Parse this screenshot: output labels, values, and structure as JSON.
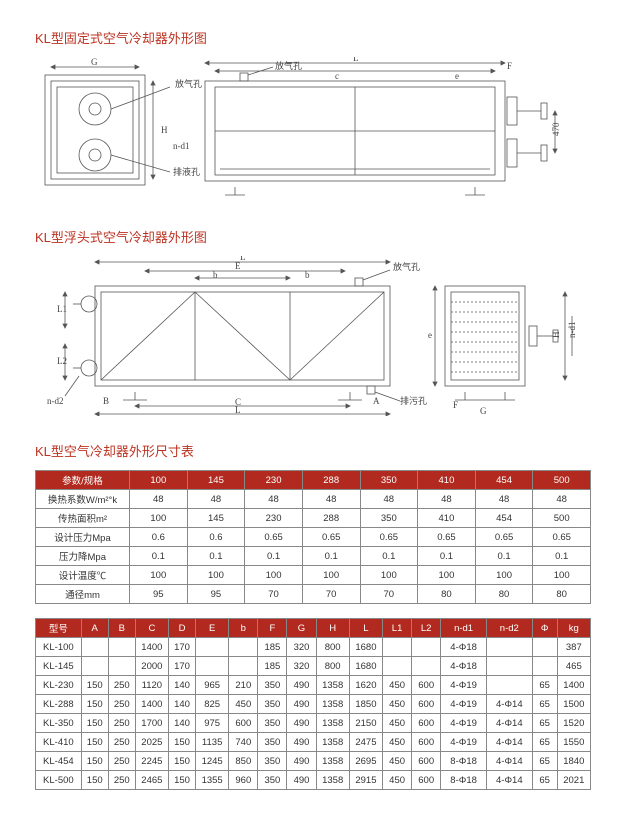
{
  "headings": {
    "h1": "KL型固定式空气冷却器外形图",
    "h2": "KL型浮头式空气冷却器外形图",
    "h3": "KL型空气冷却器外形尺寸表"
  },
  "diagram_labels": {
    "vent": "放气孔",
    "drain": "排液孔",
    "drain2": "排污孔",
    "nd1": "n-d1",
    "nd2": "n-d2",
    "G": "G",
    "H": "H",
    "L": "L",
    "c": "c",
    "e": "e",
    "f": "f",
    "F": "F",
    "A": "A",
    "B": "B",
    "C": "C",
    "E": "E",
    "b": "b",
    "L1": "L1",
    "L2": "L2",
    "n_d1": "n-d1",
    "dim470": "470"
  },
  "table1": {
    "head": [
      "参数/规格",
      "100",
      "145",
      "230",
      "288",
      "350",
      "410",
      "454",
      "500"
    ],
    "rows": [
      [
        "换热系数W/m²°k",
        "48",
        "48",
        "48",
        "48",
        "48",
        "48",
        "48",
        "48"
      ],
      [
        "传热面积m²",
        "100",
        "145",
        "230",
        "288",
        "350",
        "410",
        "454",
        "500"
      ],
      [
        "设计压力Mpa",
        "0.6",
        "0.6",
        "0.65",
        "0.65",
        "0.65",
        "0.65",
        "0.65",
        "0.65"
      ],
      [
        "压力降Mpa",
        "0.1",
        "0.1",
        "0.1",
        "0.1",
        "0.1",
        "0.1",
        "0.1",
        "0.1"
      ],
      [
        "设计温度℃",
        "100",
        "100",
        "100",
        "100",
        "100",
        "100",
        "100",
        "100"
      ],
      [
        "通径mm",
        "95",
        "95",
        "70",
        "70",
        "70",
        "80",
        "80",
        "80"
      ]
    ]
  },
  "table2": {
    "head": [
      "型号",
      "A",
      "B",
      "C",
      "D",
      "E",
      "b",
      "F",
      "G",
      "H",
      "L",
      "L1",
      "L2",
      "n-d1",
      "n-d2",
      "Φ",
      "kg"
    ],
    "rows": [
      [
        "KL-100",
        "",
        "",
        "1400",
        "170",
        "",
        "",
        "185",
        "320",
        "800",
        "1680",
        "",
        "",
        "4-Φ18",
        "",
        "",
        "387"
      ],
      [
        "KL-145",
        "",
        "",
        "2000",
        "170",
        "",
        "",
        "185",
        "320",
        "800",
        "1680",
        "",
        "",
        "4-Φ18",
        "",
        "",
        "465"
      ],
      [
        "KL-230",
        "150",
        "250",
        "1120",
        "140",
        "965",
        "210",
        "350",
        "490",
        "1358",
        "1620",
        "450",
        "600",
        "4-Φ19",
        "",
        "65",
        "1400"
      ],
      [
        "KL-288",
        "150",
        "250",
        "1400",
        "140",
        "825",
        "450",
        "350",
        "490",
        "1358",
        "1850",
        "450",
        "600",
        "4-Φ19",
        "4-Φ14",
        "65",
        "1500"
      ],
      [
        "KL-350",
        "150",
        "250",
        "1700",
        "140",
        "975",
        "600",
        "350",
        "490",
        "1358",
        "2150",
        "450",
        "600",
        "4-Φ19",
        "4-Φ14",
        "65",
        "1520"
      ],
      [
        "KL-410",
        "150",
        "250",
        "2025",
        "150",
        "1135",
        "740",
        "350",
        "490",
        "1358",
        "2475",
        "450",
        "600",
        "4-Φ19",
        "4-Φ14",
        "65",
        "1550"
      ],
      [
        "KL-454",
        "150",
        "250",
        "2245",
        "150",
        "1245",
        "850",
        "350",
        "490",
        "1358",
        "2695",
        "450",
        "600",
        "8-Φ18",
        "4-Φ14",
        "65",
        "1840"
      ],
      [
        "KL-500",
        "150",
        "250",
        "2465",
        "150",
        "1355",
        "960",
        "350",
        "490",
        "1358",
        "2915",
        "450",
        "600",
        "8-Φ18",
        "4-Φ14",
        "65",
        "2021"
      ]
    ]
  }
}
